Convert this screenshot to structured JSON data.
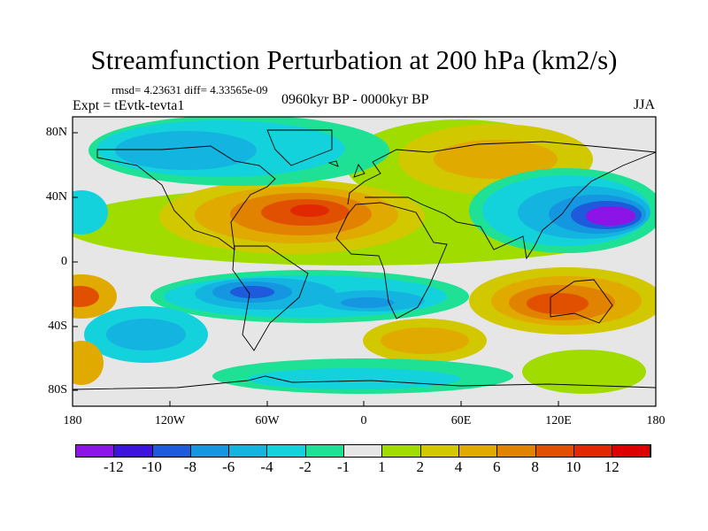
{
  "title": "Streamfunction Perturbation at 200 hPa (km2/s)",
  "stats": "rmsd= 4.23631 diff= 4.33565e-09",
  "experiment": "Expt = tEvtk-tevta1",
  "period": "0960kyr BP - 0000kyr BP",
  "season": "JJA",
  "y_ticks": [
    "80N",
    "40N",
    "0",
    "40S",
    "80S"
  ],
  "x_ticks": [
    "180",
    "120W",
    "60W",
    "0",
    "60E",
    "120E",
    "180"
  ],
  "colorbar": {
    "colors": [
      "#8c14e6",
      "#3c14dc",
      "#1e5adc",
      "#1496e0",
      "#14b4e0",
      "#14d2dc",
      "#1ee196",
      "#e6e6e6",
      "#a0dc00",
      "#d2c800",
      "#e1aa00",
      "#e18200",
      "#e15000",
      "#e12800",
      "#dc0000"
    ],
    "labels": [
      "-12",
      "-10",
      "-8",
      "-6",
      "-4",
      "-2",
      "-1",
      "1",
      "2",
      "4",
      "6",
      "8",
      "10",
      "12"
    ]
  }
}
